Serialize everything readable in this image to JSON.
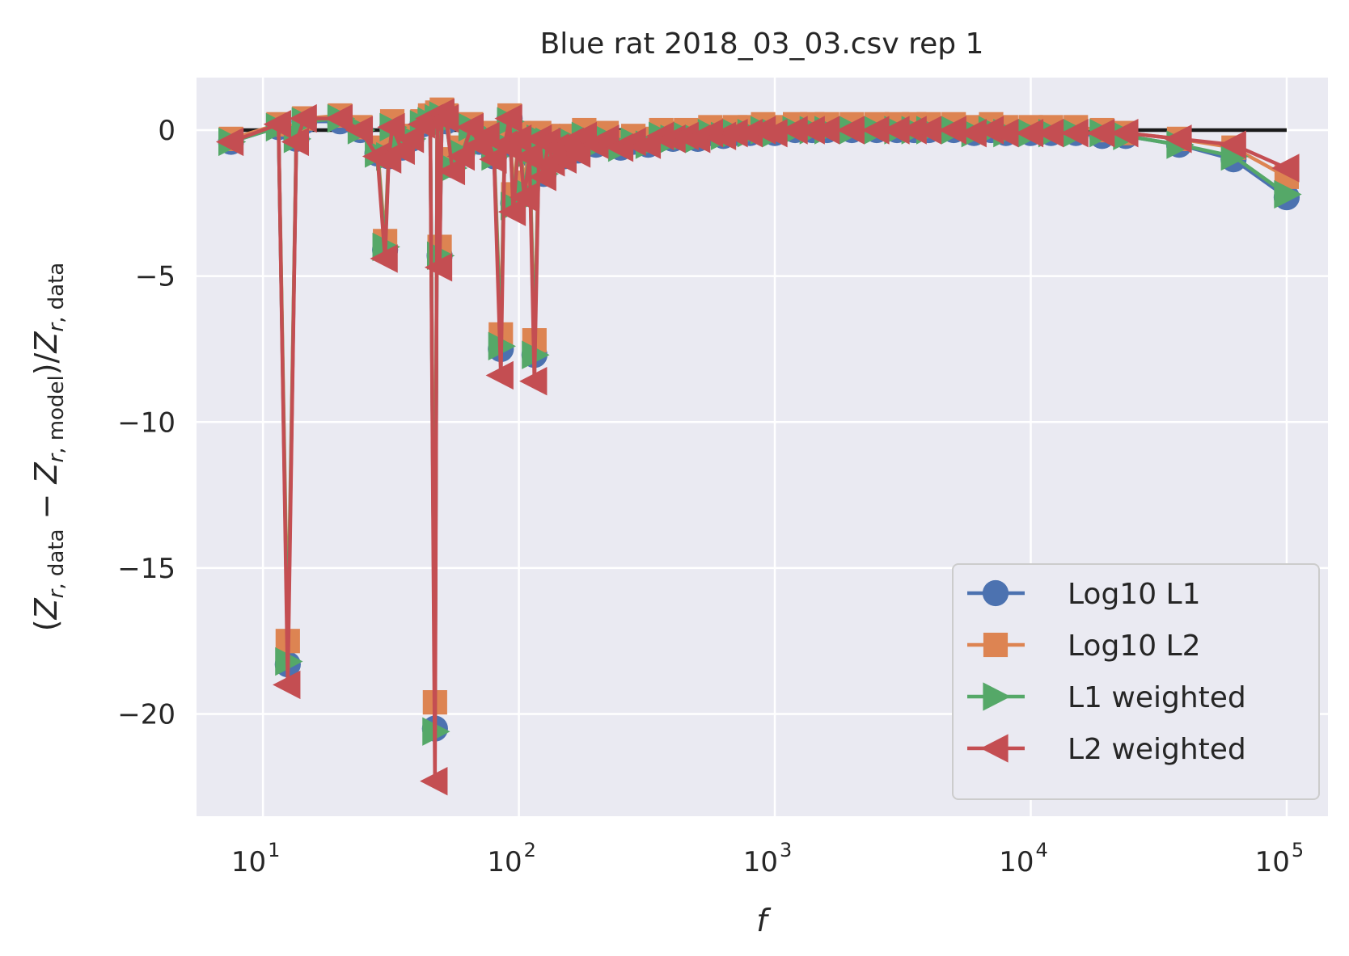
{
  "chart_data": {
    "type": "line",
    "title": "Blue rat 2018_03_03.csv rep 1",
    "xlabel": "f",
    "ylabel": "(Z_{r, data} − Z_{r, model})/Z_{r, data}",
    "xscale": "log",
    "xlim": [
      5.5,
      145000
    ],
    "ylim": [
      -23.5,
      1.8
    ],
    "grid": true,
    "legend_position": "lower-right",
    "background_color": "#eaeaf2",
    "x_ticks": [
      {
        "value": 10,
        "base": "10",
        "exp": "1"
      },
      {
        "value": 100,
        "base": "10",
        "exp": "2"
      },
      {
        "value": 1000,
        "base": "10",
        "exp": "3"
      },
      {
        "value": 10000,
        "base": "10",
        "exp": "4"
      },
      {
        "value": 100000,
        "base": "10",
        "exp": "5"
      }
    ],
    "y_ticks": [
      {
        "value": 0,
        "label": "0"
      },
      {
        "value": -5,
        "label": "−5"
      },
      {
        "value": -10,
        "label": "−10"
      },
      {
        "value": -15,
        "label": "−15"
      },
      {
        "value": -20,
        "label": "−20"
      }
    ],
    "reference_line": {
      "x": [
        7.5,
        100000
      ],
      "y": [
        0,
        0
      ],
      "color": "#1a1a1a"
    },
    "x": [
      7.5,
      11.5,
      12.5,
      13.5,
      14.5,
      20,
      24,
      28,
      30,
      31,
      32,
      35,
      38,
      42,
      45,
      47,
      48,
      49,
      50,
      52,
      55,
      60,
      65,
      70,
      75,
      80,
      85,
      88,
      92,
      95,
      100,
      105,
      110,
      115,
      120,
      125,
      130,
      135,
      140,
      150,
      160,
      170,
      180,
      200,
      220,
      250,
      280,
      320,
      360,
      400,
      450,
      500,
      560,
      630,
      700,
      800,
      900,
      1000,
      1200,
      1400,
      1600,
      2000,
      2500,
      3000,
      3500,
      4000,
      5000,
      6000,
      7000,
      8000,
      10000,
      12000,
      15000,
      19000,
      23500,
      38000,
      62000,
      100000
    ],
    "series": [
      {
        "name": "Log10 L1",
        "color": "#4c72b0",
        "marker": "circle",
        "y": [
          -0.4,
          0.1,
          -18.3,
          -0.3,
          0.3,
          0.3,
          0.0,
          -0.8,
          -4.1,
          -0.9,
          0.1,
          -0.6,
          -0.3,
          0.2,
          0.3,
          -20.5,
          0.4,
          -4.3,
          0.5,
          0.3,
          -1.2,
          -0.8,
          0.1,
          -0.4,
          -0.2,
          -0.9,
          -7.5,
          -0.5,
          0.4,
          -2.5,
          -0.3,
          -2.1,
          -0.8,
          -7.7,
          -0.3,
          -1.5,
          -0.4,
          -1.0,
          -0.6,
          -0.9,
          -0.4,
          -0.7,
          -0.2,
          -0.5,
          -0.3,
          -0.6,
          -0.4,
          -0.5,
          -0.2,
          -0.3,
          -0.2,
          -0.3,
          -0.1,
          -0.2,
          -0.1,
          -0.1,
          0.0,
          -0.1,
          0.0,
          0.0,
          0.0,
          0.0,
          0.0,
          0.0,
          0.0,
          0.0,
          0.0,
          -0.1,
          0.0,
          -0.1,
          -0.1,
          -0.1,
          -0.1,
          -0.2,
          -0.2,
          -0.5,
          -1.0,
          -2.3
        ]
      },
      {
        "name": "Log10 L2",
        "color": "#dd8452",
        "marker": "square",
        "y": [
          -0.3,
          0.2,
          -17.5,
          -0.2,
          0.4,
          0.5,
          0.1,
          -0.6,
          -3.8,
          -0.7,
          0.3,
          -0.4,
          -0.2,
          0.3,
          0.5,
          -19.6,
          0.6,
          -4.0,
          0.7,
          0.5,
          -1.0,
          -0.6,
          0.2,
          -0.3,
          -0.1,
          -0.7,
          -7.0,
          -0.3,
          0.5,
          -2.2,
          -0.1,
          -1.8,
          -0.6,
          -7.2,
          -0.1,
          -1.3,
          -0.2,
          -0.8,
          -0.4,
          -0.7,
          -0.2,
          -0.5,
          0.0,
          -0.3,
          -0.1,
          -0.4,
          -0.2,
          -0.3,
          0.0,
          -0.1,
          0.0,
          -0.1,
          0.1,
          0.0,
          0.1,
          0.1,
          0.2,
          0.1,
          0.2,
          0.2,
          0.2,
          0.2,
          0.2,
          0.2,
          0.2,
          0.2,
          0.2,
          0.1,
          0.2,
          0.1,
          0.1,
          0.1,
          0.1,
          0.0,
          -0.1,
          -0.3,
          -0.6,
          -1.6
        ]
      },
      {
        "name": "L1 weighted",
        "color": "#55a868",
        "marker": "triangle-right",
        "y": [
          -0.4,
          0.1,
          -18.2,
          -0.3,
          0.3,
          0.4,
          0.0,
          -0.8,
          -4.0,
          -0.9,
          0.1,
          -0.6,
          -0.3,
          0.2,
          0.3,
          -20.6,
          0.4,
          -4.3,
          0.5,
          0.3,
          -1.3,
          -0.8,
          0.1,
          -0.4,
          -0.2,
          -0.9,
          -7.4,
          -0.5,
          0.3,
          -2.6,
          -0.3,
          -2.1,
          -0.8,
          -7.7,
          -0.3,
          -1.5,
          -0.4,
          -1.0,
          -0.6,
          -0.9,
          -0.4,
          -0.7,
          -0.2,
          -0.5,
          -0.3,
          -0.6,
          -0.4,
          -0.5,
          -0.2,
          -0.3,
          -0.2,
          -0.3,
          -0.1,
          -0.2,
          -0.1,
          -0.1,
          0.0,
          -0.1,
          0.0,
          0.0,
          0.0,
          0.0,
          0.0,
          0.0,
          0.0,
          0.0,
          0.0,
          -0.1,
          0.0,
          -0.1,
          -0.1,
          -0.1,
          -0.1,
          -0.1,
          -0.2,
          -0.5,
          -0.9,
          -2.2
        ]
      },
      {
        "name": "L2 weighted",
        "color": "#c44e52",
        "marker": "triangle-left",
        "y": [
          -0.4,
          0.2,
          -19.0,
          -0.4,
          0.4,
          0.4,
          0.0,
          -0.9,
          -4.4,
          -1.0,
          0.1,
          -0.7,
          -0.3,
          0.2,
          0.4,
          -22.3,
          0.5,
          -4.7,
          0.6,
          0.4,
          -1.4,
          -0.9,
          0.1,
          -0.5,
          -0.2,
          -1.0,
          -8.4,
          -0.5,
          0.4,
          -2.8,
          -0.3,
          -2.3,
          -0.9,
          -8.6,
          -0.3,
          -1.6,
          -0.4,
          -1.1,
          -0.6,
          -1.0,
          -0.4,
          -0.8,
          -0.2,
          -0.5,
          -0.3,
          -0.6,
          -0.4,
          -0.5,
          -0.2,
          -0.3,
          -0.2,
          -0.3,
          -0.1,
          -0.2,
          -0.1,
          -0.1,
          0.0,
          -0.1,
          0.0,
          0.0,
          0.0,
          0.0,
          0.0,
          0.0,
          0.0,
          0.0,
          0.0,
          -0.1,
          0.0,
          -0.1,
          -0.1,
          -0.1,
          -0.1,
          -0.1,
          -0.1,
          -0.3,
          -0.5,
          -1.3
        ]
      }
    ]
  }
}
